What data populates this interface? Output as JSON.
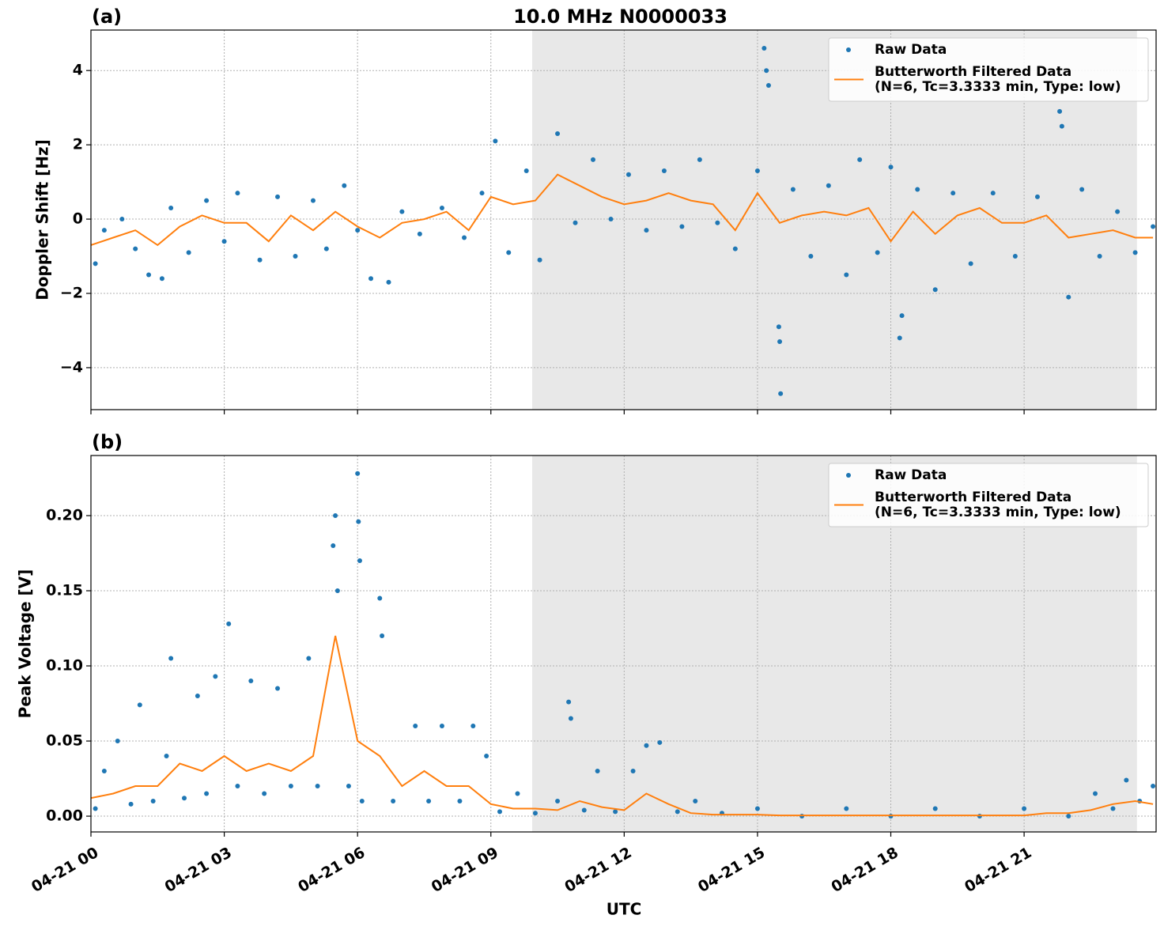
{
  "chart_data": [
    {
      "type": "line",
      "title": "10.0 MHz N0000033",
      "panel_label": "(a)",
      "ylabel": "Doppler Shift [Hz]",
      "xlim": [
        0,
        23.97
      ],
      "xticks": [
        0,
        3,
        6,
        9,
        12,
        15,
        18,
        21
      ],
      "ylim": [
        -5.13,
        5.09
      ],
      "yticks": [
        {
          "value": -4,
          "label": "−4"
        },
        {
          "value": -2,
          "label": "−2"
        },
        0,
        2,
        4
      ],
      "grid": true,
      "legend": "upper right",
      "shaded_span": [
        9.93,
        23.54
      ],
      "shade_color": "#e8e8e8",
      "series": [
        {
          "name": "Raw Data",
          "style": "markers",
          "color": "#1f77b4",
          "x": [
            0.1,
            0.3,
            0.7,
            1.0,
            1.3,
            1.6,
            1.8,
            2.2,
            2.6,
            3.0,
            3.3,
            3.8,
            4.2,
            4.6,
            5.0,
            5.3,
            5.7,
            6.0,
            6.3,
            6.7,
            7.0,
            7.4,
            7.9,
            8.4,
            8.8,
            9.1,
            9.4,
            9.8,
            10.1,
            10.5,
            10.9,
            11.3,
            11.7,
            12.1,
            12.5,
            12.9,
            13.3,
            13.7,
            14.1,
            14.5,
            15.0,
            15.15,
            15.2,
            15.25,
            15.5,
            15.52,
            15.48,
            15.8,
            16.2,
            16.6,
            17.0,
            17.3,
            17.7,
            18.0,
            18.2,
            18.25,
            18.6,
            19.0,
            19.4,
            19.8,
            20.3,
            20.8,
            21.3,
            21.8,
            21.85,
            22.0,
            22.3,
            22.7,
            23.1,
            23.5,
            23.9
          ],
          "values": [
            -1.2,
            -0.3,
            0.0,
            -0.8,
            -1.5,
            -1.6,
            0.3,
            -0.9,
            0.5,
            -0.6,
            0.7,
            -1.1,
            0.6,
            -1.0,
            0.5,
            -0.8,
            0.9,
            -0.3,
            -1.6,
            -1.7,
            0.2,
            -0.4,
            0.3,
            -0.5,
            0.7,
            2.1,
            -0.9,
            1.3,
            -1.1,
            2.3,
            -0.1,
            1.6,
            0.0,
            1.2,
            -0.3,
            1.3,
            -0.2,
            1.6,
            -0.1,
            -0.8,
            1.3,
            4.6,
            4.0,
            3.6,
            -3.3,
            -4.7,
            -2.9,
            0.8,
            -1.0,
            0.9,
            -1.5,
            1.6,
            -0.9,
            1.4,
            -3.2,
            -2.6,
            0.8,
            -1.9,
            0.7,
            -1.2,
            0.7,
            -1.0,
            0.6,
            2.9,
            2.5,
            -2.1,
            0.8,
            -1.0,
            0.2,
            -0.9,
            -0.2
          ]
        },
        {
          "name": [
            "Butterworth Filtered Data",
            "(N=6, Tc=3.3333 min, Type: low)"
          ],
          "style": "line",
          "color": "#ff7f0e",
          "x": [
            0,
            0.5,
            1,
            1.5,
            2,
            2.5,
            3,
            3.5,
            4,
            4.5,
            5,
            5.5,
            6,
            6.5,
            7,
            7.5,
            8,
            8.5,
            9,
            9.5,
            10,
            10.5,
            11,
            11.5,
            12,
            12.5,
            13,
            13.5,
            14,
            14.5,
            15,
            15.5,
            16,
            16.5,
            17,
            17.5,
            18,
            18.5,
            19,
            19.5,
            20,
            20.5,
            21,
            21.5,
            22,
            22.5,
            23,
            23.5,
            23.9
          ],
          "values": [
            -0.7,
            -0.5,
            -0.3,
            -0.7,
            -0.2,
            0.1,
            -0.1,
            -0.1,
            -0.6,
            0.1,
            -0.3,
            0.2,
            -0.2,
            -0.5,
            -0.1,
            0.0,
            0.2,
            -0.3,
            0.6,
            0.4,
            0.5,
            1.2,
            0.9,
            0.6,
            0.4,
            0.5,
            0.7,
            0.5,
            0.4,
            -0.3,
            0.7,
            -0.1,
            0.1,
            0.2,
            0.1,
            0.3,
            -0.6,
            0.2,
            -0.4,
            0.1,
            0.3,
            -0.1,
            -0.1,
            0.1,
            -0.5,
            -0.4,
            -0.3,
            -0.5,
            -0.5
          ]
        }
      ]
    },
    {
      "type": "line",
      "panel_label": "(b)",
      "ylabel": "Peak Voltage [V]",
      "xlabel": "UTC",
      "xlim": [
        0,
        23.97
      ],
      "xticks": [
        {
          "value": 0,
          "label": "04-21 00"
        },
        {
          "value": 3,
          "label": "04-21 03"
        },
        {
          "value": 6,
          "label": "04-21 06"
        },
        {
          "value": 9,
          "label": "04-21 09"
        },
        {
          "value": 12,
          "label": "04-21 12"
        },
        {
          "value": 15,
          "label": "04-21 15"
        },
        {
          "value": 18,
          "label": "04-21 18"
        },
        {
          "value": 21,
          "label": "04-21 21"
        }
      ],
      "ylim": [
        -0.0105,
        0.24
      ],
      "yticks": [
        {
          "value": 0,
          "label": "0.00"
        },
        {
          "value": 0.05,
          "label": "0.05"
        },
        {
          "value": 0.1,
          "label": "0.10"
        },
        {
          "value": 0.15,
          "label": "0.15"
        },
        {
          "value": 0.2,
          "label": "0.20"
        }
      ],
      "grid": true,
      "legend": "upper right",
      "shaded_span": [
        9.93,
        23.54
      ],
      "shade_color": "#e8e8e8",
      "series": [
        {
          "name": "Raw Data",
          "style": "markers",
          "color": "#1f77b4",
          "x": [
            0.1,
            0.3,
            0.6,
            0.9,
            1.1,
            1.4,
            1.7,
            1.8,
            2.1,
            2.4,
            2.6,
            2.8,
            3.1,
            3.3,
            3.6,
            3.9,
            4.2,
            4.5,
            4.9,
            5.1,
            5.5,
            5.45,
            5.55,
            5.8,
            6.0,
            6.02,
            6.05,
            6.1,
            6.5,
            6.55,
            6.8,
            7.3,
            7.6,
            7.9,
            8.3,
            8.6,
            8.9,
            9.2,
            9.6,
            10.0,
            10.5,
            10.75,
            10.8,
            11.1,
            11.4,
            11.8,
            12.2,
            12.5,
            12.8,
            13.2,
            13.6,
            14.2,
            15.0,
            16.0,
            17.0,
            18.0,
            19.0,
            20.0,
            21.0,
            22.0,
            22.6,
            23.0,
            23.3,
            23.6,
            23.9
          ],
          "values": [
            0.005,
            0.03,
            0.05,
            0.008,
            0.074,
            0.01,
            0.04,
            0.105,
            0.012,
            0.08,
            0.015,
            0.093,
            0.128,
            0.02,
            0.09,
            0.015,
            0.085,
            0.02,
            0.105,
            0.02,
            0.2,
            0.18,
            0.15,
            0.02,
            0.228,
            0.196,
            0.17,
            0.01,
            0.145,
            0.12,
            0.01,
            0.06,
            0.01,
            0.06,
            0.01,
            0.06,
            0.04,
            0.003,
            0.015,
            0.002,
            0.01,
            0.076,
            0.065,
            0.004,
            0.03,
            0.003,
            0.03,
            0.047,
            0.049,
            0.003,
            0.01,
            0.002,
            0.005,
            0,
            0.005,
            0,
            0.005,
            0,
            0.005,
            0,
            0.015,
            0.005,
            0.024,
            0.01,
            0.02
          ]
        },
        {
          "name": [
            "Butterworth Filtered Data",
            "(N=6, Tc=3.3333 min, Type: low)"
          ],
          "style": "line",
          "color": "#ff7f0e",
          "x": [
            0,
            0.5,
            1,
            1.5,
            2,
            2.5,
            3,
            3.5,
            4,
            4.5,
            5,
            5.5,
            6,
            6.5,
            7,
            7.5,
            8,
            8.5,
            9,
            9.5,
            10,
            10.5,
            11,
            11.5,
            12,
            12.5,
            13,
            13.5,
            14,
            14.5,
            15,
            15.5,
            16,
            16.5,
            17,
            17.5,
            18,
            18.5,
            19,
            19.5,
            20,
            20.5,
            21,
            21.5,
            22,
            22.5,
            23,
            23.5,
            23.9
          ],
          "values": [
            0.012,
            0.015,
            0.02,
            0.02,
            0.035,
            0.03,
            0.04,
            0.03,
            0.035,
            0.03,
            0.04,
            0.12,
            0.05,
            0.04,
            0.02,
            0.03,
            0.02,
            0.02,
            0.008,
            0.005,
            0.005,
            0.004,
            0.01,
            0.006,
            0.004,
            0.015,
            0.008,
            0.002,
            0.001,
            0.001,
            0.001,
            0.0005,
            0.0005,
            0.0005,
            0.0005,
            0.0005,
            0.0005,
            0.0005,
            0.0005,
            0.0005,
            0.0005,
            0.0005,
            0.0005,
            0.002,
            0.002,
            0.004,
            0.008,
            0.01,
            0.008
          ]
        }
      ]
    }
  ]
}
